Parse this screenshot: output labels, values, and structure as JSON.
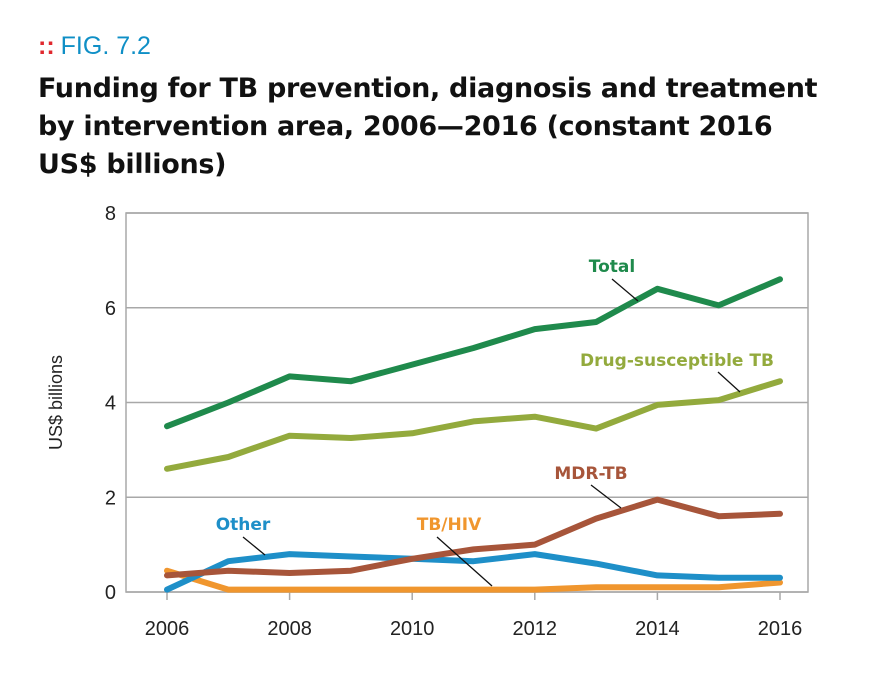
{
  "figure": {
    "label_marker": "::",
    "label": "FIG. 7.2",
    "title": "Funding for TB prevention, diagnosis and treatment by intervention area, 2006—2016 (constant 2016 US$ billions)"
  },
  "colors": {
    "fig_label": "#0f8fc6",
    "marker": "#e0282e",
    "grid": "#a8a8a8"
  },
  "chart_data": {
    "type": "line",
    "title": "Funding for TB prevention, diagnosis and treatment by intervention area, 2006—2016 (constant 2016 US$ billions)",
    "xlabel": "",
    "ylabel": "US$ billions",
    "x": [
      2006,
      2007,
      2008,
      2009,
      2010,
      2011,
      2012,
      2013,
      2014,
      2015,
      2016
    ],
    "xticks": [
      "2006",
      "2008",
      "2010",
      "2012",
      "2014",
      "2016"
    ],
    "xlim": [
      2006,
      2016
    ],
    "yticks": [
      "0",
      "2",
      "4",
      "6",
      "8"
    ],
    "ylim": [
      0,
      8
    ],
    "grid": true,
    "legend": "none (series labelled directly on chart)",
    "series": [
      {
        "name": "Total",
        "color": "#1f8a4c",
        "values": [
          3.5,
          4.0,
          4.55,
          4.45,
          4.8,
          5.15,
          5.55,
          5.7,
          6.4,
          6.05,
          6.6
        ]
      },
      {
        "name": "Drug-susceptible TB",
        "color": "#93aa3d",
        "values": [
          2.6,
          2.85,
          3.3,
          3.25,
          3.35,
          3.6,
          3.7,
          3.45,
          3.95,
          4.05,
          4.45
        ]
      },
      {
        "name": "MDR-TB",
        "color": "#a7553a",
        "values": [
          0.35,
          0.45,
          0.4,
          0.45,
          0.7,
          0.9,
          1.0,
          1.55,
          1.95,
          1.6,
          1.65
        ]
      },
      {
        "name": "Other",
        "color": "#1e8fc8",
        "values": [
          0.05,
          0.65,
          0.8,
          0.75,
          0.7,
          0.65,
          0.8,
          0.6,
          0.35,
          0.3,
          0.3
        ]
      },
      {
        "name": "TB/HIV",
        "color": "#f0962e",
        "values": [
          0.45,
          0.05,
          0.05,
          0.05,
          0.05,
          0.05,
          0.05,
          0.1,
          0.1,
          0.1,
          0.2
        ]
      }
    ]
  }
}
